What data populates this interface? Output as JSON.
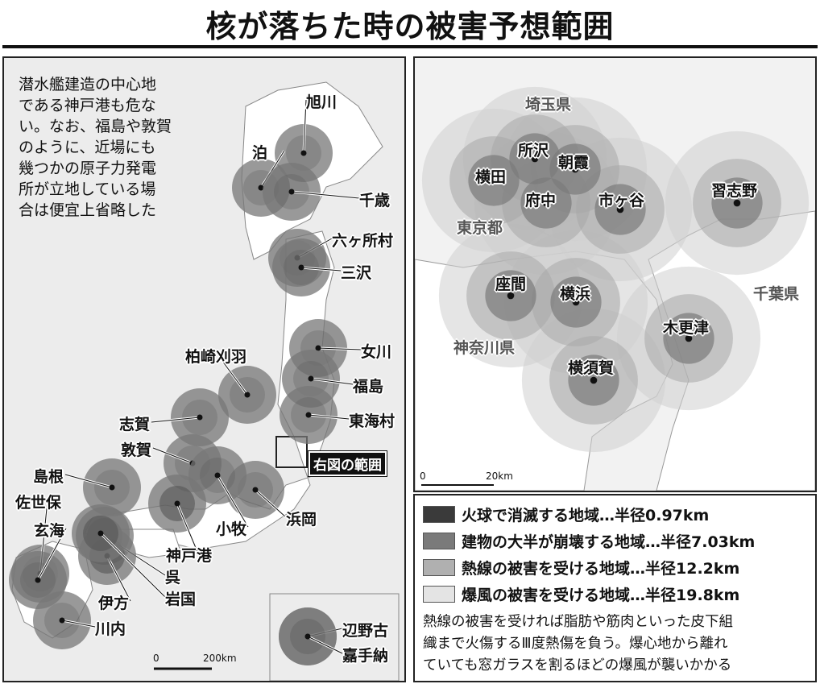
{
  "title": "核が落ちた時の被害予想範囲",
  "left_map": {
    "note": "潜水艦建造の中心地\nである神戸港も危な\nい。なお、福島や敦賀\nのように、近場にも\n幾つかの原子力発電\n所が立地している場\n合は便宜上省略した",
    "sites": [
      "旭川",
      "泊",
      "千歳",
      "六ヶ所村",
      "三沢",
      "柏崎刈羽",
      "女川",
      "福島",
      "東海村",
      "志賀",
      "敦賀",
      "島根",
      "佐世保",
      "玄海",
      "浜岡",
      "小牧",
      "神戸港",
      "呉",
      "伊方",
      "岩国",
      "川内",
      "辺野古",
      "嘉手納"
    ],
    "inset_label": "右図の範囲",
    "scale": {
      "zero": "0",
      "max": "200km"
    }
  },
  "right_map": {
    "prefectures": [
      "埼玉県",
      "東京都",
      "千葉県",
      "神奈川県"
    ],
    "sites": [
      "所沢",
      "朝霞",
      "横田",
      "府中",
      "市ヶ谷",
      "習志野",
      "座間",
      "横浜",
      "木更津",
      "横須賀"
    ],
    "scale": {
      "zero": "0",
      "max": "20km"
    }
  },
  "legend": {
    "items": [
      {
        "label": "火球で消滅する地域…半径0.97km",
        "color": "#3a3a3a",
        "radius_km": 0.97
      },
      {
        "label": "建物の大半が崩壊する地域…半径7.03km",
        "color": "#7a7a7a",
        "radius_km": 7.03
      },
      {
        "label": "熱線の被害を受ける地域…半径12.2km",
        "color": "#b0b0b0",
        "radius_km": 12.2
      },
      {
        "label": "爆風の被害を受ける地域…半径19.8km",
        "color": "#e4e4e4",
        "radius_km": 19.8
      }
    ],
    "description": "熱線の被害を受ければ脂肪や筋肉といった皮下組\n織まで火傷するⅢ度熱傷を負う。爆心地から離れ\nていても窓ガラスを割るほどの爆風が襲いかかる"
  }
}
